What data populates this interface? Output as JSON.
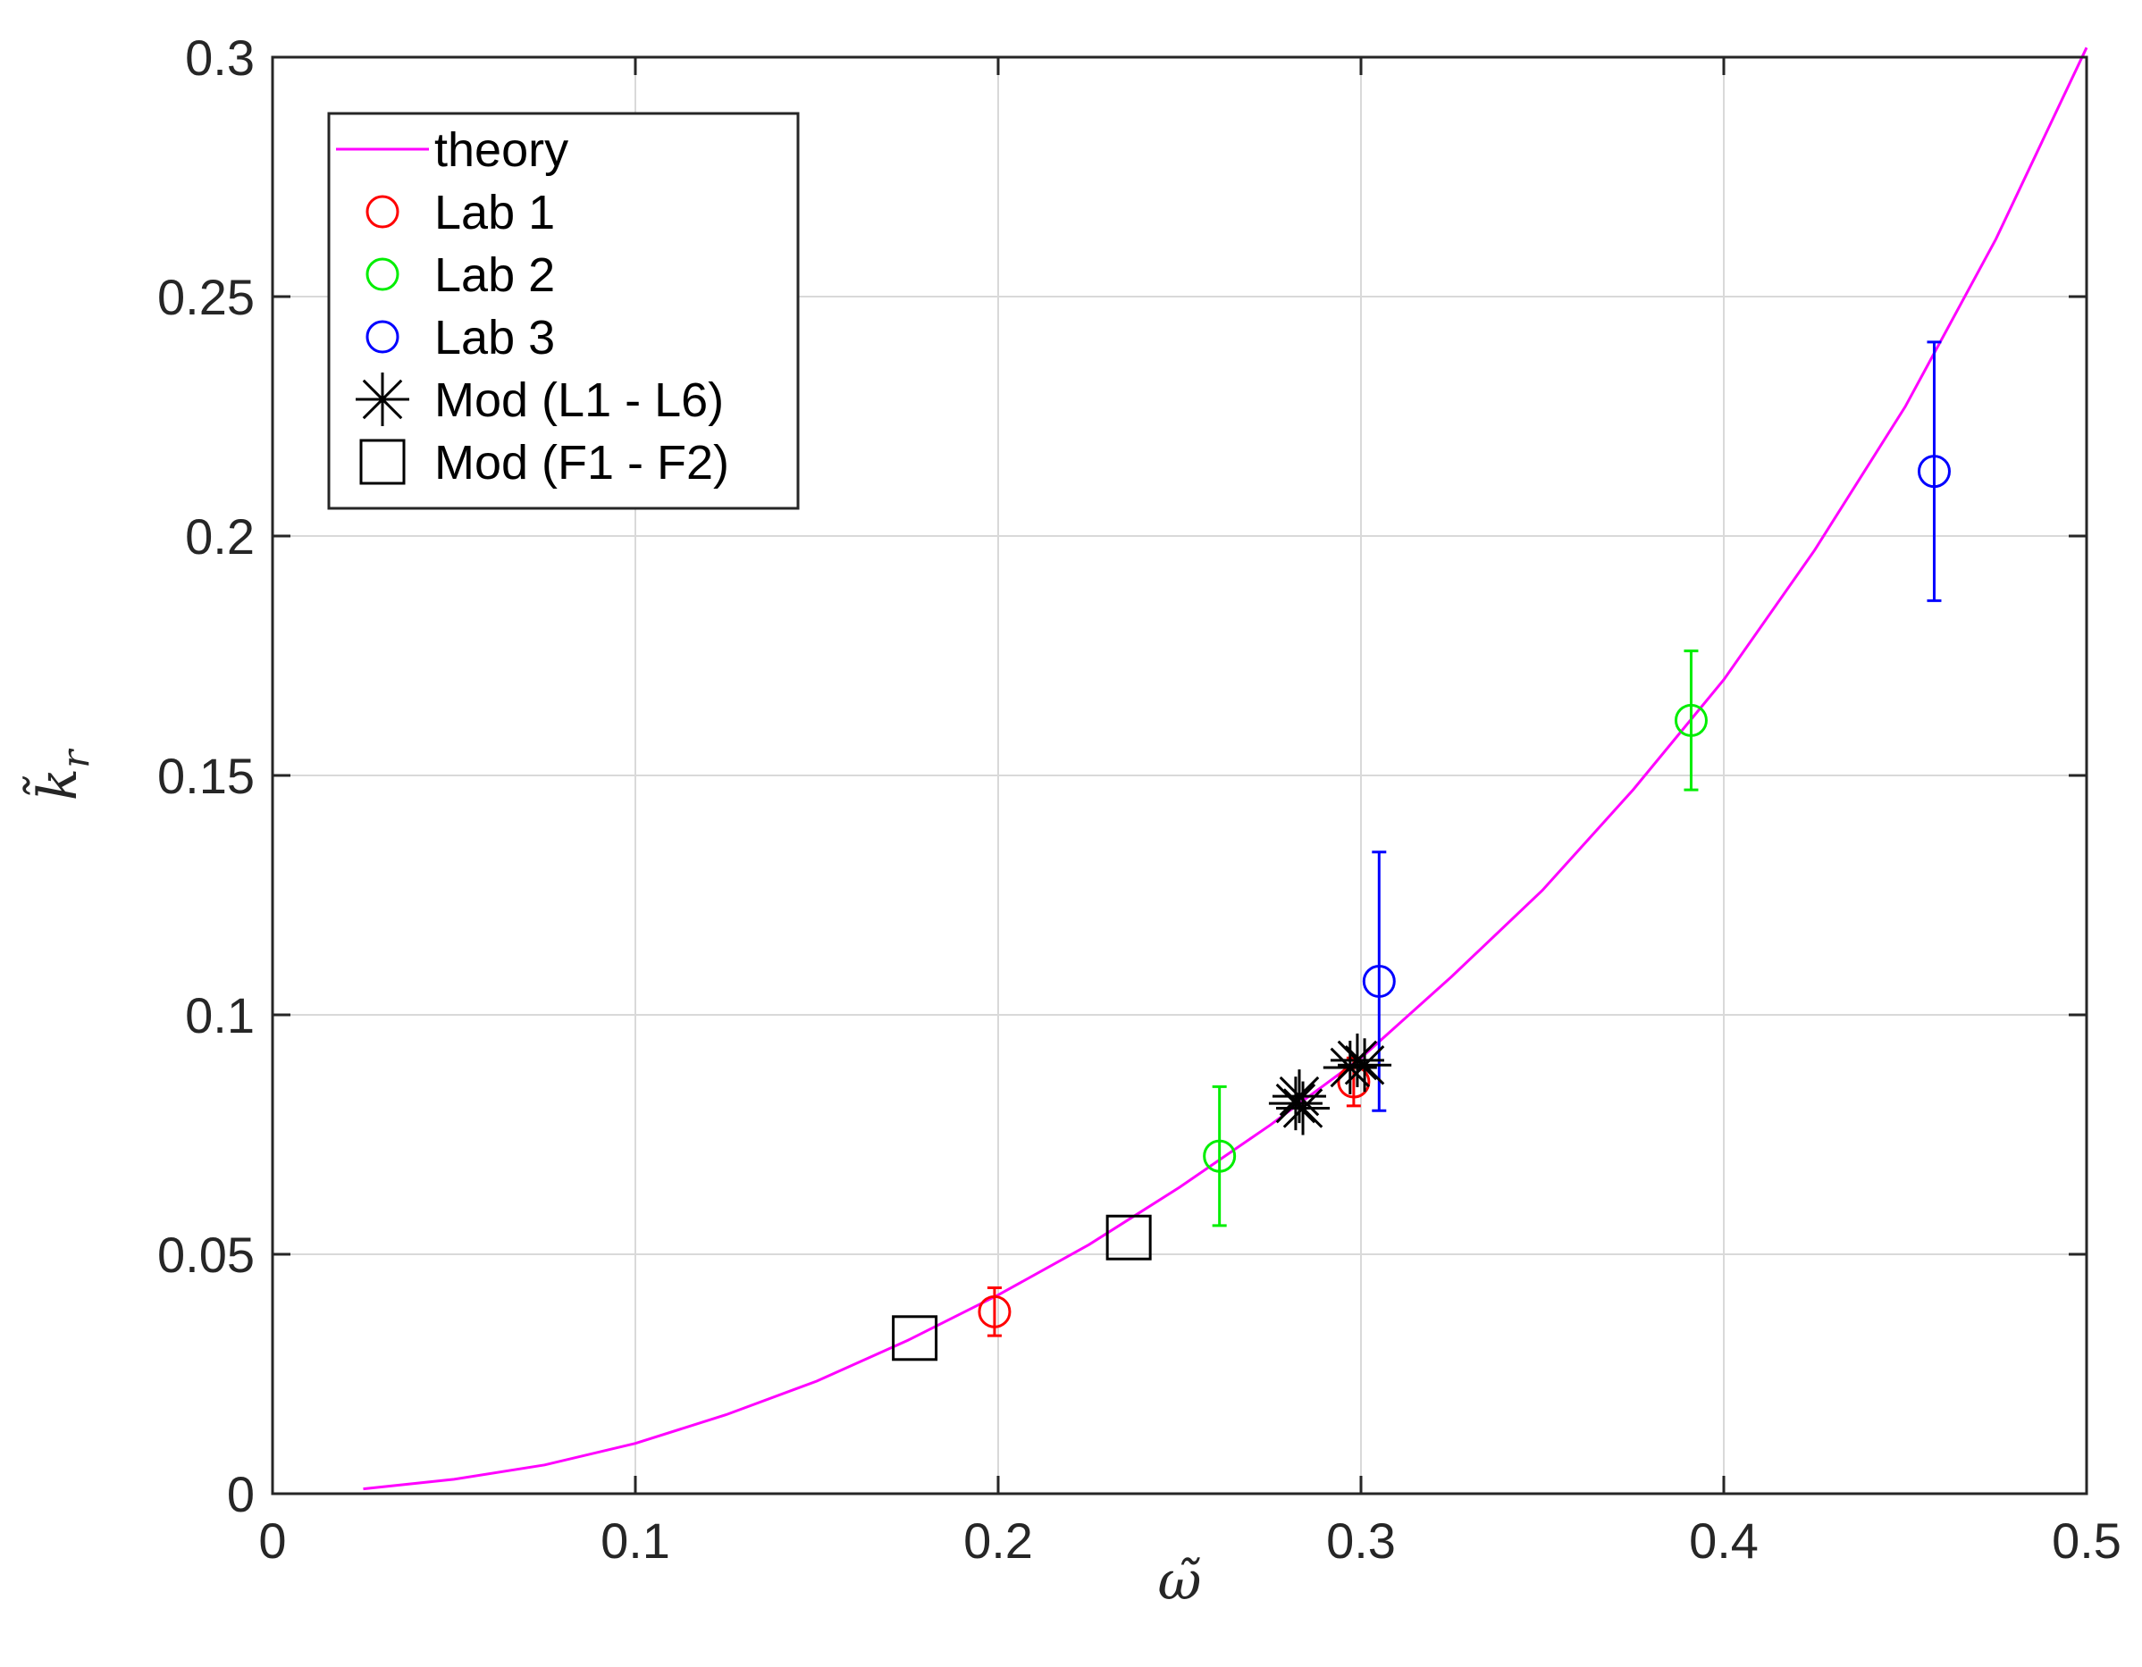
{
  "chart_data": {
    "type": "scatter",
    "xlabel": "ω̃",
    "ylabel": "k̃",
    "ylabel_subscript": "r",
    "xlim": [
      0,
      0.5
    ],
    "ylim": [
      0,
      0.3
    ],
    "x_ticks": [
      "0",
      "0.1",
      "0.2",
      "0.3",
      "0.4",
      "0.5"
    ],
    "y_ticks": [
      "0",
      "0.05",
      "0.1",
      "0.15",
      "0.2",
      "0.25",
      "0.3"
    ],
    "grid": true,
    "legend_position": "top-left",
    "series": [
      {
        "name": "theory",
        "kind": "line",
        "color": "#ff00ff",
        "x": [
          0.025,
          0.05,
          0.075,
          0.1,
          0.125,
          0.15,
          0.175,
          0.2,
          0.225,
          0.25,
          0.275,
          0.3,
          0.325,
          0.35,
          0.375,
          0.4,
          0.425,
          0.45,
          0.475,
          0.5
        ],
        "y": [
          0.001,
          0.003,
          0.006,
          0.0105,
          0.0165,
          0.0235,
          0.032,
          0.0415,
          0.052,
          0.064,
          0.077,
          0.091,
          0.108,
          0.126,
          0.147,
          0.17,
          0.197,
          0.227,
          0.262,
          0.302
        ]
      },
      {
        "name": "Lab 1",
        "kind": "circle",
        "color": "#ff0000",
        "points": [
          {
            "x": 0.199,
            "y": 0.038,
            "err": 0.005
          },
          {
            "x": 0.298,
            "y": 0.086,
            "err": 0.005
          }
        ]
      },
      {
        "name": "Lab 2",
        "kind": "circle",
        "color": "#00ee00",
        "points": [
          {
            "x": 0.261,
            "y": 0.0705,
            "err": 0.0145
          },
          {
            "x": 0.391,
            "y": 0.1615,
            "err": 0.0145
          }
        ]
      },
      {
        "name": "Lab 3",
        "kind": "circle",
        "color": "#0000ff",
        "points": [
          {
            "x": 0.305,
            "y": 0.107,
            "err": 0.027
          },
          {
            "x": 0.458,
            "y": 0.2135,
            "err": 0.027
          }
        ]
      },
      {
        "name": "Mod (L1 - L6)",
        "kind": "asterisk",
        "color": "#000000",
        "points": [
          {
            "x": 0.282,
            "y": 0.0815
          },
          {
            "x": 0.283,
            "y": 0.083
          },
          {
            "x": 0.284,
            "y": 0.0805
          },
          {
            "x": 0.297,
            "y": 0.089
          },
          {
            "x": 0.299,
            "y": 0.0905
          },
          {
            "x": 0.301,
            "y": 0.0895
          }
        ]
      },
      {
        "name": "Mod (F1 - F2)",
        "kind": "square",
        "color": "#000000",
        "points": [
          {
            "x": 0.177,
            "y": 0.0325
          },
          {
            "x": 0.236,
            "y": 0.0535
          }
        ]
      }
    ]
  }
}
